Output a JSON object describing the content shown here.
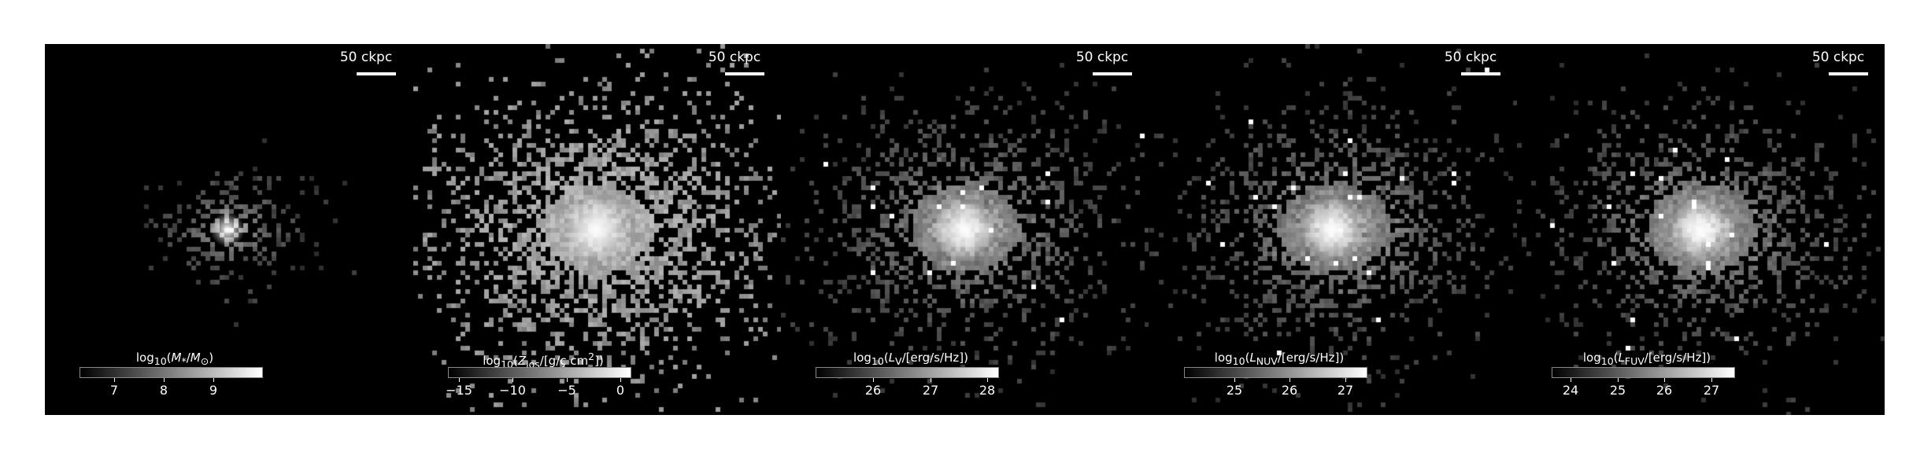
{
  "panels": [
    {
      "id": "stellar-mass",
      "scalebar_label": "50 ckpc",
      "colorbar_label_html": "log<sub>10</sub>(<i>M</i><sub>*</sub>/<i>M</i><sub>&#8857;</sub>)",
      "colorbar_range": [
        6.3,
        10.0
      ],
      "colorbar_ticks": [
        7,
        8,
        9
      ],
      "colorbar_tick_labels": [
        "7",
        "8",
        "9"
      ]
    },
    {
      "id": "metallicity",
      "scalebar_label": "50 ckpc",
      "colorbar_label_html": "log<sub>10</sub>(<i>Z</i><sub>los</sub>/[g/ç cm<sup>2</sup>])",
      "colorbar_range": [
        -16.0,
        1.0
      ],
      "colorbar_ticks": [
        -15,
        -10,
        -5,
        0
      ],
      "colorbar_tick_labels": [
        "−15",
        "−10",
        "−5",
        "0"
      ]
    },
    {
      "id": "v-band-luminosity",
      "scalebar_label": "50 ckpc",
      "colorbar_label_html": "log<sub>10</sub>(<i>L</i><sub>V</sub>/[erg/s/Hz])",
      "colorbar_range": [
        25.0,
        28.2
      ],
      "colorbar_ticks": [
        26,
        27,
        28
      ],
      "colorbar_tick_labels": [
        "26",
        "27",
        "28"
      ]
    },
    {
      "id": "nuv-luminosity",
      "scalebar_label": "50 ckpc",
      "colorbar_label_html": "log<sub>10</sub>(<i>L</i><sub>NUV</sub>/[erg/s/Hz])",
      "colorbar_range": [
        24.1,
        27.4
      ],
      "colorbar_ticks": [
        25,
        26,
        27
      ],
      "colorbar_tick_labels": [
        "25",
        "26",
        "27"
      ]
    },
    {
      "id": "fuv-luminosity",
      "scalebar_label": "50 ckpc",
      "colorbar_label_html": "log<sub>10</sub>(<i>L</i><sub>FUV</sub>/[erg/s/Hz])",
      "colorbar_range": [
        23.6,
        27.5
      ],
      "colorbar_ticks": [
        24,
        25,
        26,
        27
      ],
      "colorbar_tick_labels": [
        "24",
        "25",
        "26",
        "27"
      ]
    }
  ],
  "colors": {
    "background": "#000000",
    "text": "#ffffff",
    "page": "#ffffff"
  }
}
